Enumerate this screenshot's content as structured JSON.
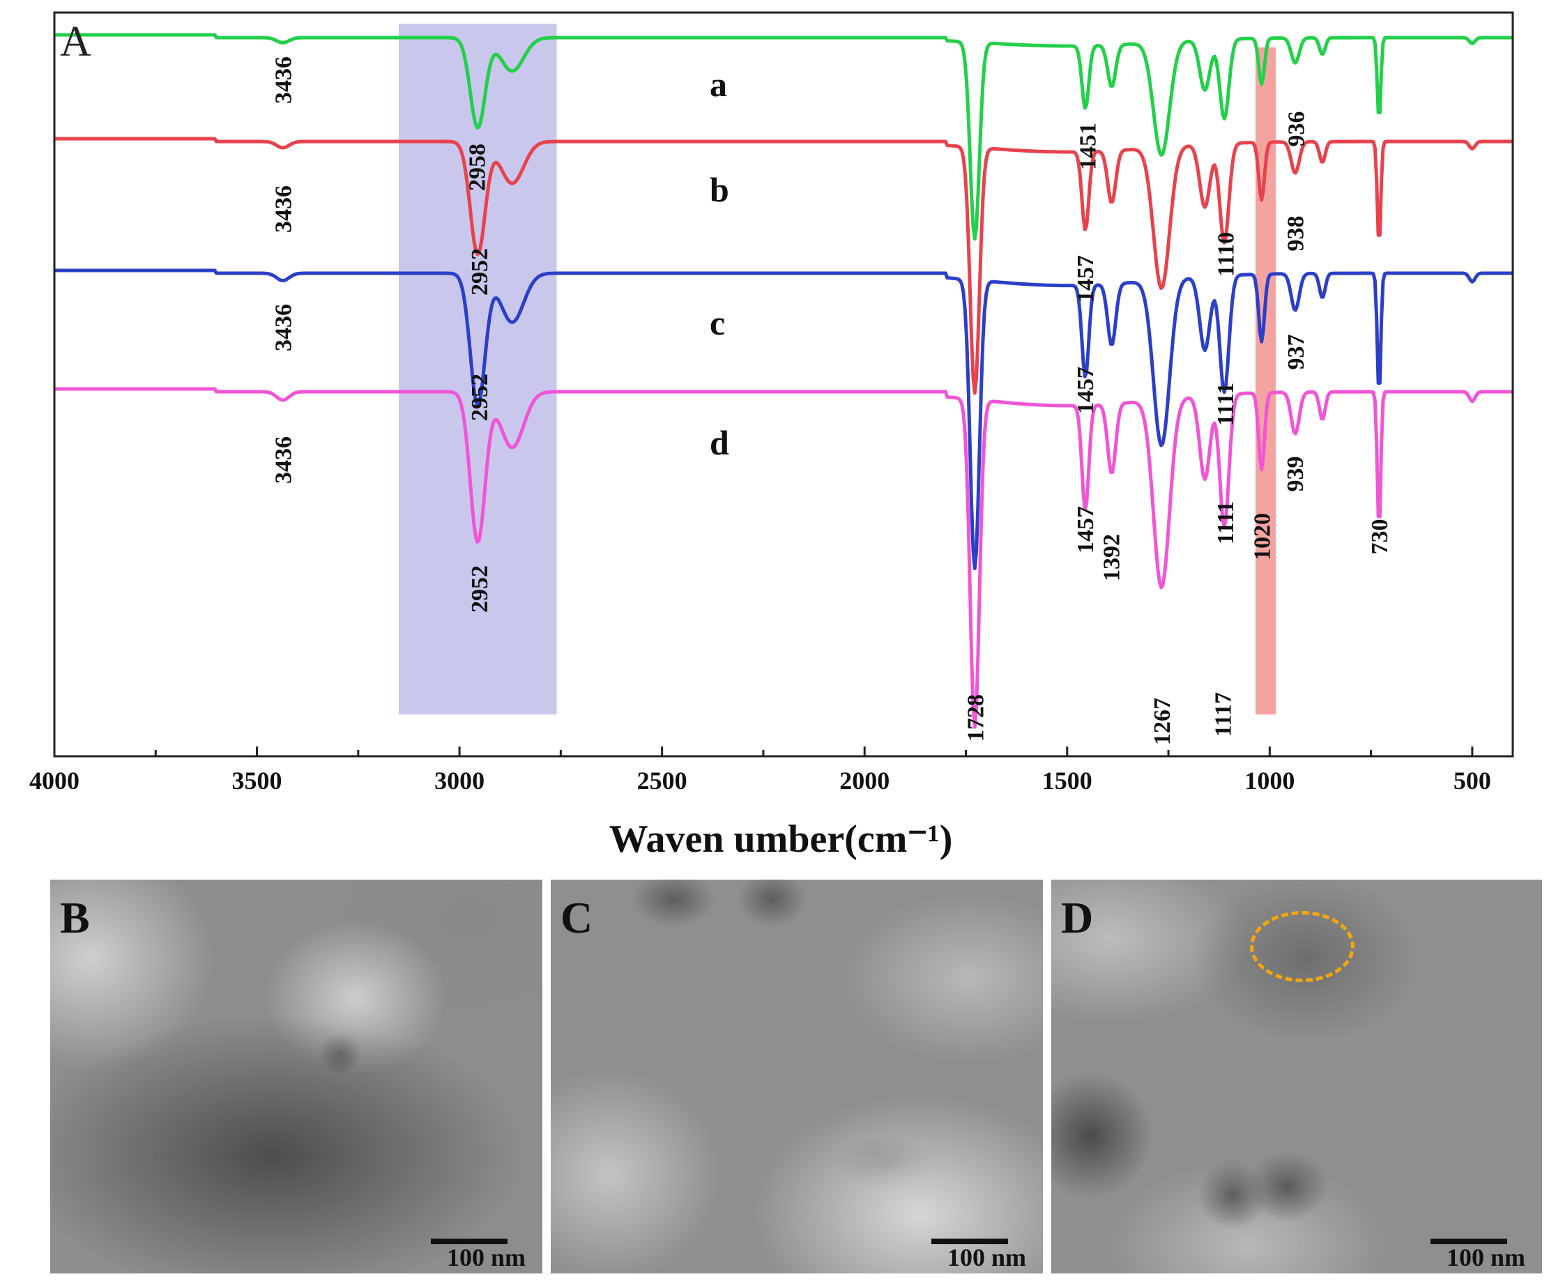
{
  "chart_data": {
    "type": "line",
    "panel_label": "A",
    "xlabel": "Waven umber(cm⁻¹)",
    "xlim": [
      4000,
      400
    ],
    "x_ticks": [
      "4000",
      "3500",
      "3000",
      "2500",
      "2000",
      "1500",
      "1000",
      "500"
    ],
    "x_tick_values": [
      4000,
      3500,
      3000,
      2500,
      2000,
      1500,
      1000,
      500
    ],
    "shaded_regions": [
      {
        "from": 3150,
        "to": 2760,
        "color": "#c9c8ec"
      },
      {
        "from": 1035,
        "to": 985,
        "color": "#f4a4a0"
      }
    ],
    "series": [
      {
        "name": "a",
        "color": "#22d04a",
        "offset": 0,
        "peaks": [
          3436,
          2958,
          1728,
          1451,
          1110,
          1020,
          936,
          730
        ]
      },
      {
        "name": "b",
        "color": "#e8424c",
        "offset": 1,
        "peaks": [
          3436,
          2952,
          1728,
          1457,
          1267,
          1111,
          1020,
          938,
          730
        ]
      },
      {
        "name": "c",
        "color": "#2c3fc8",
        "offset": 2,
        "peaks": [
          3436,
          2952,
          1728,
          1457,
          1267,
          1111,
          1020,
          937,
          730
        ]
      },
      {
        "name": "d",
        "color": "#f055d6",
        "offset": 3,
        "peaks": [
          3436,
          2952,
          1728,
          1457,
          1392,
          1267,
          1117,
          1020,
          939,
          730
        ]
      }
    ],
    "peak_labels": [
      {
        "text": "3436",
        "x": 3436,
        "row": 0
      },
      {
        "text": "3436",
        "x": 3436,
        "row": 1
      },
      {
        "text": "3436",
        "x": 3436,
        "row": 2
      },
      {
        "text": "3436",
        "x": 3436,
        "row": 3
      },
      {
        "text": "2958",
        "x": 2958,
        "row": 0
      },
      {
        "text": "2952",
        "x": 2952,
        "row": 1
      },
      {
        "text": "2952",
        "x": 2952,
        "row": 2
      },
      {
        "text": "2952",
        "x": 2952,
        "row": 3
      },
      {
        "text": "1728",
        "x": 1728,
        "row": 3
      },
      {
        "text": "1451",
        "x": 1451,
        "row": 0
      },
      {
        "text": "1457",
        "x": 1457,
        "row": 1
      },
      {
        "text": "1457",
        "x": 1457,
        "row": 2
      },
      {
        "text": "1457",
        "x": 1457,
        "row": 3
      },
      {
        "text": "1392",
        "x": 1392,
        "row": 3
      },
      {
        "text": "1267",
        "x": 1267,
        "row": 3
      },
      {
        "text": "1110",
        "x": 1110,
        "row": 0
      },
      {
        "text": "1111",
        "x": 1111,
        "row": 1
      },
      {
        "text": "1111",
        "x": 1111,
        "row": 2
      },
      {
        "text": "1117",
        "x": 1117,
        "row": 3
      },
      {
        "text": "1020",
        "x": 1020,
        "row": 3
      },
      {
        "text": "936",
        "x": 936,
        "row": 0
      },
      {
        "text": "938",
        "x": 938,
        "row": 1
      },
      {
        "text": "937",
        "x": 937,
        "row": 2
      },
      {
        "text": "939",
        "x": 939,
        "row": 3
      },
      {
        "text": "730",
        "x": 730,
        "row": 3
      }
    ],
    "grid": false,
    "legend": "letters beside curves"
  },
  "tem_panels": [
    {
      "label": "B",
      "scale": "100 nm"
    },
    {
      "label": "C",
      "scale": "100 nm"
    },
    {
      "label": "D",
      "scale": "100 nm"
    }
  ]
}
